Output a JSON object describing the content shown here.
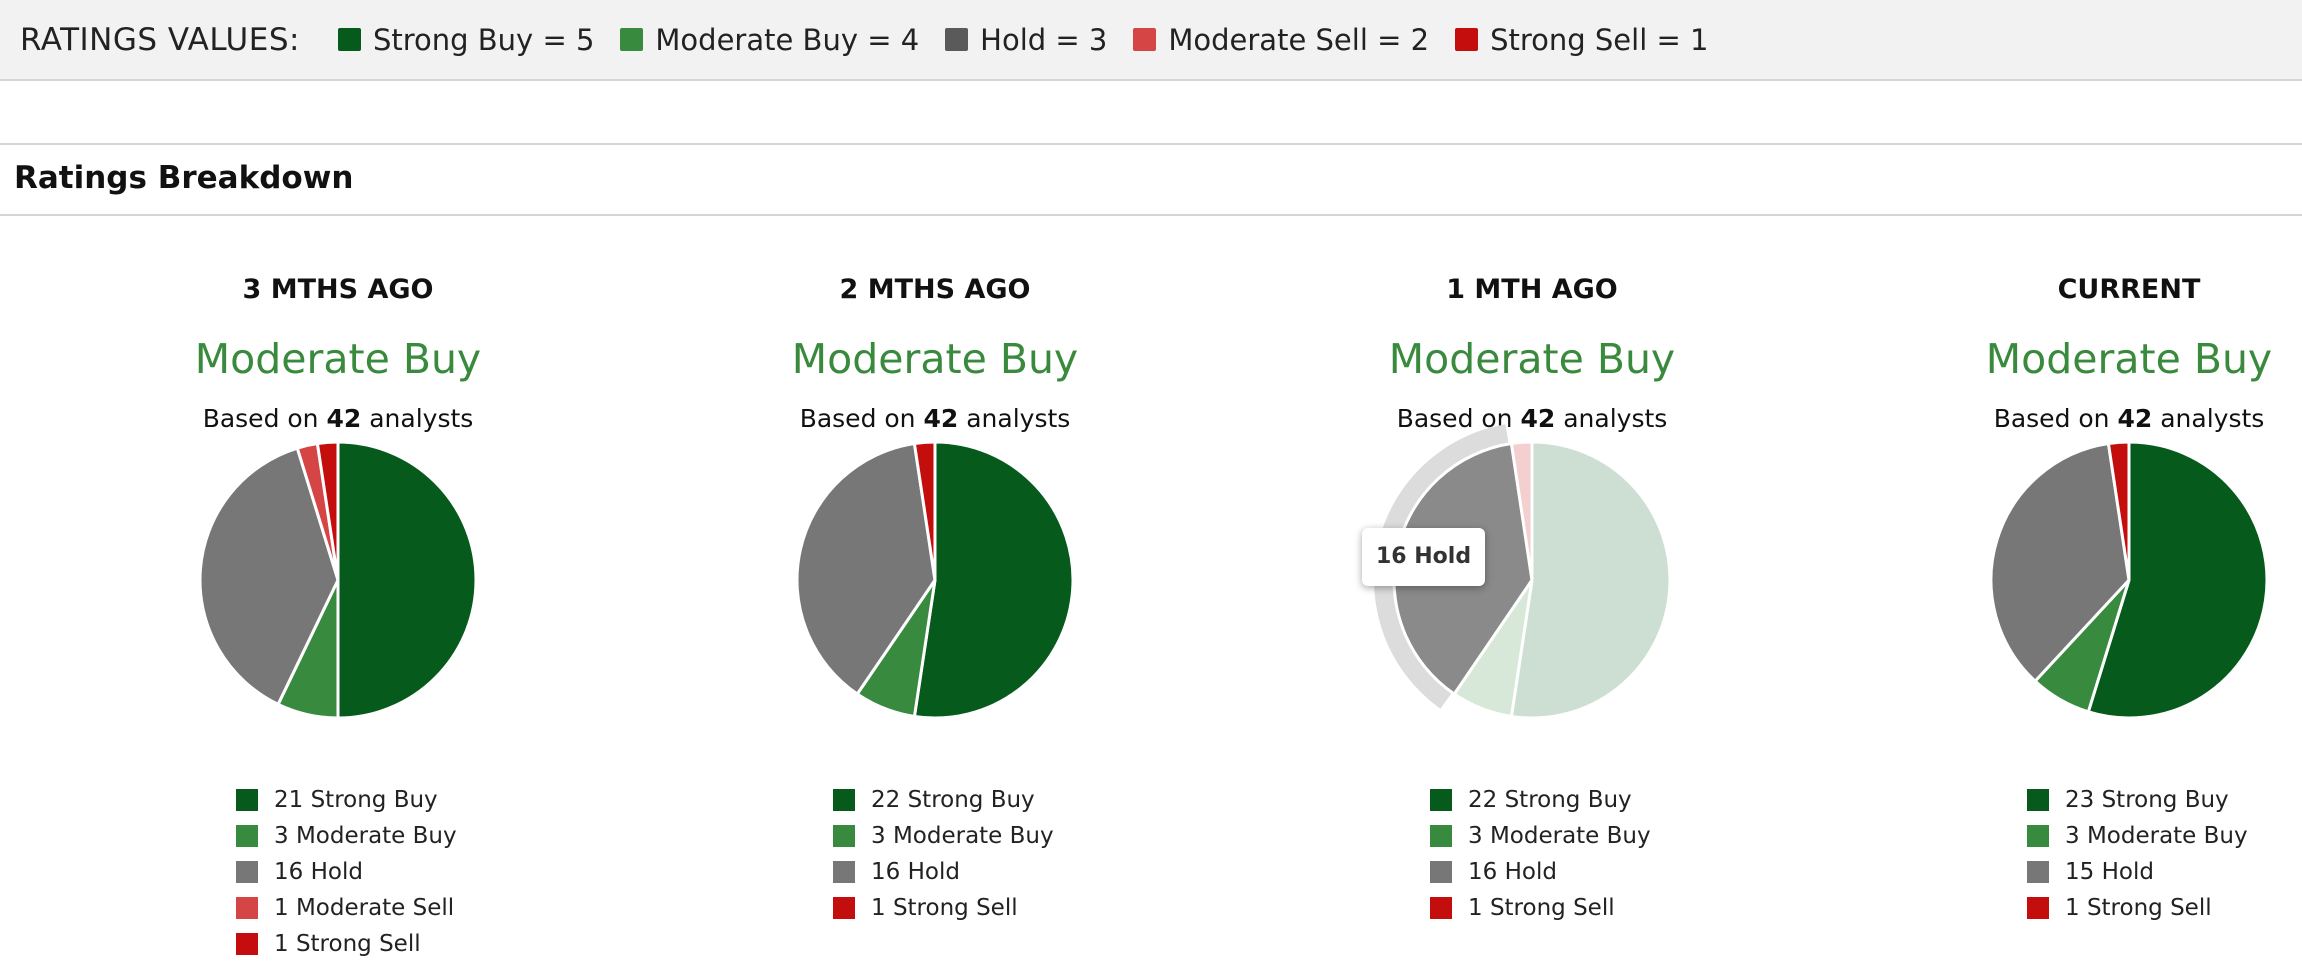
{
  "header": {
    "title": "RATINGS VALUES:",
    "values": [
      {
        "label": "Strong Buy = 5",
        "color": "#055a1c"
      },
      {
        "label": "Moderate Buy = 4",
        "color": "#388a3e"
      },
      {
        "label": "Hold = 3",
        "color": "#5a5a5a"
      },
      {
        "label": "Moderate Sell = 2",
        "color": "#d64545"
      },
      {
        "label": "Strong Sell = 1",
        "color": "#c40e0e"
      }
    ]
  },
  "section": {
    "title": "Ratings Breakdown"
  },
  "tooltip": {
    "text": "16 Hold"
  },
  "chart_data": [
    {
      "type": "pie",
      "title": "3 MTHS AGO",
      "consensus": "Moderate Buy",
      "based_prefix": "Based on ",
      "analyst_count": "42",
      "based_suffix": " analysts",
      "slices": [
        {
          "label": "Strong Buy",
          "value": 21,
          "color": "#055a1c"
        },
        {
          "label": "Moderate Buy",
          "value": 3,
          "color": "#388a3e"
        },
        {
          "label": "Hold",
          "value": 16,
          "color": "#777777"
        },
        {
          "label": "Moderate Sell",
          "value": 1,
          "color": "#d64545"
        },
        {
          "label": "Strong Sell",
          "value": 1,
          "color": "#c40e0e"
        }
      ],
      "legend": [
        "21 Strong Buy",
        "3 Moderate Buy",
        "16 Hold",
        "1 Moderate Sell",
        "1 Strong Sell"
      ]
    },
    {
      "type": "pie",
      "title": "2 MTHS AGO",
      "consensus": "Moderate Buy",
      "based_prefix": "Based on ",
      "analyst_count": "42",
      "based_suffix": " analysts",
      "slices": [
        {
          "label": "Strong Buy",
          "value": 22,
          "color": "#055a1c"
        },
        {
          "label": "Moderate Buy",
          "value": 3,
          "color": "#388a3e"
        },
        {
          "label": "Hold",
          "value": 16,
          "color": "#777777"
        },
        {
          "label": "Strong Sell",
          "value": 1,
          "color": "#c40e0e"
        }
      ],
      "legend": [
        "22 Strong Buy",
        "3 Moderate Buy",
        "16 Hold",
        "1 Strong Sell"
      ]
    },
    {
      "type": "pie",
      "title": "1 MTH AGO",
      "consensus": "Moderate Buy",
      "based_prefix": "Based on ",
      "analyst_count": "42",
      "based_suffix": " analysts",
      "highlighted_slice": "Hold",
      "slices": [
        {
          "label": "Strong Buy",
          "value": 22,
          "color": "#055a1c"
        },
        {
          "label": "Moderate Buy",
          "value": 3,
          "color": "#388a3e"
        },
        {
          "label": "Hold",
          "value": 16,
          "color": "#777777"
        },
        {
          "label": "Strong Sell",
          "value": 1,
          "color": "#c40e0e"
        }
      ],
      "legend": [
        "22 Strong Buy",
        "3 Moderate Buy",
        "16 Hold",
        "1 Strong Sell"
      ]
    },
    {
      "type": "pie",
      "title": "CURRENT",
      "consensus": "Moderate Buy",
      "based_prefix": "Based on ",
      "analyst_count": "42",
      "based_suffix": " analysts",
      "slices": [
        {
          "label": "Strong Buy",
          "value": 23,
          "color": "#055a1c"
        },
        {
          "label": "Moderate Buy",
          "value": 3,
          "color": "#388a3e"
        },
        {
          "label": "Hold",
          "value": 15,
          "color": "#777777"
        },
        {
          "label": "Strong Sell",
          "value": 1,
          "color": "#c40e0e"
        }
      ],
      "legend": [
        "23 Strong Buy",
        "3 Moderate Buy",
        "15 Hold",
        "1 Strong Sell"
      ]
    }
  ]
}
